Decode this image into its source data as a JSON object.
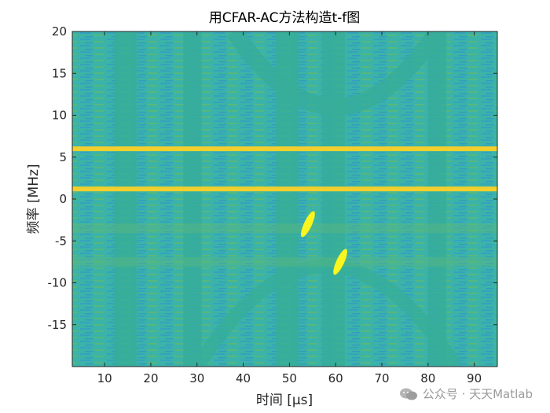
{
  "chart_data": {
    "type": "heatmap",
    "title": "用CFAR-AC方法构造t-f图",
    "xlabel": "时间 [μs]",
    "ylabel": "频率 [MHz]",
    "xlim": [
      3,
      95
    ],
    "ylim": [
      -20,
      20
    ],
    "x_ticks": [
      10,
      20,
      30,
      40,
      50,
      60,
      70,
      80,
      90
    ],
    "y_ticks": [
      20,
      15,
      10,
      5,
      0,
      -5,
      -10,
      -15
    ],
    "grid": false,
    "colormap": "parula",
    "colors": {
      "background": "#3fb8a4",
      "stripe": "#37ad9a",
      "hot_line": "#f2cf2d",
      "hot_spot": "#fbf51e",
      "cool": "#2f8fd1"
    },
    "features": {
      "horizontal_lines_mhz": [
        6,
        1.2
      ],
      "faint_band_mhz": [
        -3.5,
        -7.5
      ],
      "vertical_bands_us": [
        [
          12,
          17
        ],
        [
          27,
          31
        ],
        [
          47,
          52
        ],
        [
          57,
          62
        ],
        [
          80,
          84
        ]
      ],
      "hot_spots": [
        {
          "t_us": 54,
          "f_mhz": -3,
          "label": ""
        },
        {
          "t_us": 61,
          "f_mhz": -7.5,
          "label": ""
        }
      ]
    }
  },
  "watermark": {
    "icon": "wechat-icon",
    "text": "公众号 · 天天Matlab"
  }
}
